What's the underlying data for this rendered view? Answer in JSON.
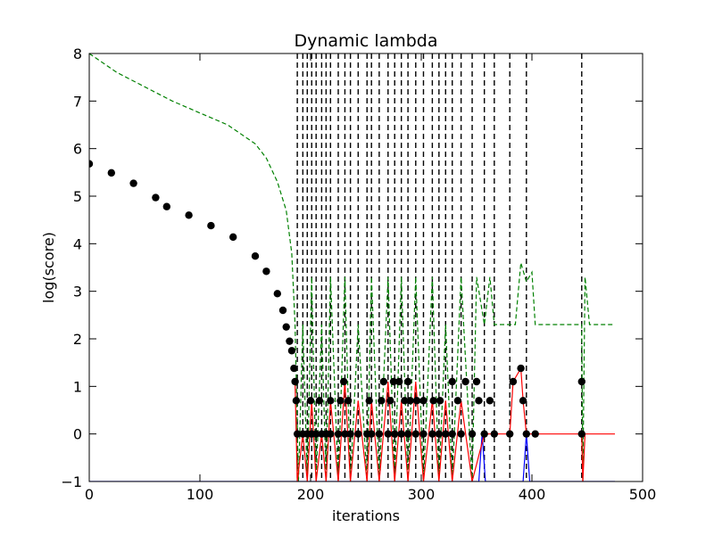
{
  "chart_data": {
    "type": "line",
    "title": "Dynamic lambda",
    "xlabel": "iterations",
    "ylabel": "log(score)",
    "xlim": [
      0,
      500
    ],
    "ylim": [
      -1,
      8
    ],
    "xticks": [
      0,
      100,
      200,
      300,
      400,
      500
    ],
    "yticks": [
      -1,
      0,
      1,
      2,
      3,
      4,
      5,
      6,
      7,
      8
    ],
    "xtick_labels": [
      "0",
      "100",
      "200",
      "300",
      "400",
      "500"
    ],
    "ytick_labels": [
      "−1",
      "0",
      "1",
      "2",
      "3",
      "4",
      "5",
      "6",
      "7",
      "8"
    ],
    "grid": false,
    "legend": "none",
    "colors": {
      "score_markers": "#000000",
      "red_line": "#ff0000",
      "blue_line": "#0000ff",
      "green_dashed": "#008000",
      "vertical_dashed": "#000000"
    },
    "series": [
      {
        "style": "black circles (log score)",
        "points": [
          [
            0,
            5.68
          ],
          [
            20,
            5.49
          ],
          [
            40,
            5.27
          ],
          [
            60,
            4.97
          ],
          [
            70,
            4.78
          ],
          [
            90,
            4.6
          ],
          [
            110,
            4.38
          ],
          [
            130,
            4.14
          ],
          [
            150,
            3.74
          ],
          [
            160,
            3.42
          ],
          [
            170,
            2.95
          ],
          [
            175,
            2.6
          ],
          [
            178,
            2.25
          ],
          [
            181,
            1.95
          ],
          [
            183,
            1.75
          ],
          [
            185,
            1.38
          ],
          [
            186,
            1.1
          ],
          [
            187,
            0.7
          ],
          [
            188,
            0.0
          ],
          [
            193,
            0.0
          ],
          [
            197,
            0.0
          ],
          [
            201,
            0.0
          ],
          [
            205,
            0.0
          ],
          [
            210,
            0.0
          ],
          [
            214,
            0.0
          ],
          [
            218,
            0.0
          ],
          [
            225,
            0.0
          ],
          [
            231,
            0.0
          ],
          [
            236,
            0.0
          ],
          [
            243,
            0.0
          ],
          [
            251,
            0.0
          ],
          [
            255,
            0.0
          ],
          [
            262,
            0.0
          ],
          [
            270,
            0.0
          ],
          [
            276,
            0.0
          ],
          [
            282,
            0.0
          ],
          [
            288,
            0.0
          ],
          [
            295,
            0.0
          ],
          [
            302,
            0.0
          ],
          [
            310,
            0.0
          ],
          [
            316,
            0.0
          ],
          [
            322,
            0.0
          ],
          [
            328,
            0.0
          ],
          [
            336,
            0.0
          ],
          [
            346,
            0.0
          ],
          [
            357,
            0.0
          ],
          [
            366,
            0.0
          ],
          [
            380,
            0.0
          ],
          [
            395,
            0.0
          ],
          [
            403,
            0.0
          ],
          [
            445,
            0.0
          ],
          [
            200,
            0.7
          ],
          [
            208,
            0.7
          ],
          [
            218,
            0.7
          ],
          [
            227,
            0.7
          ],
          [
            234,
            0.7
          ],
          [
            253,
            0.7
          ],
          [
            264,
            0.7
          ],
          [
            272,
            0.7
          ],
          [
            285,
            0.7
          ],
          [
            290,
            0.7
          ],
          [
            296,
            0.7
          ],
          [
            302,
            0.7
          ],
          [
            311,
            0.7
          ],
          [
            317,
            0.7
          ],
          [
            333,
            0.7
          ],
          [
            352,
            0.7
          ],
          [
            362,
            0.7
          ],
          [
            392,
            0.7
          ],
          [
            230,
            1.1
          ],
          [
            266,
            1.1
          ],
          [
            275,
            1.1
          ],
          [
            280,
            1.1
          ],
          [
            288,
            1.1
          ],
          [
            328,
            1.1
          ],
          [
            340,
            1.1
          ],
          [
            350,
            1.1
          ],
          [
            383,
            1.1
          ],
          [
            445,
            1.1
          ],
          [
            390,
            1.38
          ]
        ]
      },
      {
        "style": "red line (bottom range)",
        "points": [
          [
            186,
            1.1
          ],
          [
            188,
            -1.0
          ],
          [
            193,
            0.0
          ],
          [
            197,
            -1.0
          ],
          [
            201,
            0.7
          ],
          [
            205,
            -1.0
          ],
          [
            210,
            0.0
          ],
          [
            214,
            -1.0
          ],
          [
            218,
            0.7
          ],
          [
            225,
            -1.0
          ],
          [
            231,
            1.1
          ],
          [
            236,
            -1.0
          ],
          [
            243,
            0.7
          ],
          [
            251,
            -1.0
          ],
          [
            255,
            0.7
          ],
          [
            262,
            -1.0
          ],
          [
            270,
            1.1
          ],
          [
            276,
            -1.0
          ],
          [
            282,
            0.7
          ],
          [
            288,
            -1.0
          ],
          [
            295,
            1.1
          ],
          [
            302,
            -1.0
          ],
          [
            310,
            0.7
          ],
          [
            316,
            -1.0
          ],
          [
            322,
            0.7
          ],
          [
            328,
            -1.0
          ],
          [
            336,
            0.7
          ],
          [
            346,
            -1.0
          ],
          [
            357,
            0.0
          ],
          [
            366,
            0.0
          ],
          [
            380,
            0.0
          ],
          [
            383,
            1.1
          ],
          [
            390,
            1.38
          ],
          [
            392,
            0.7
          ],
          [
            395,
            0.0
          ],
          [
            403,
            0.0
          ],
          [
            445,
            0.0
          ],
          [
            446,
            -1.0
          ],
          [
            448,
            0.0
          ],
          [
            475,
            0.0
          ]
        ]
      },
      {
        "style": "blue line",
        "points": [
          [
            0,
            -1.0
          ],
          [
            352,
            -1.0
          ],
          [
            355,
            0.0
          ],
          [
            358,
            -1.0
          ],
          [
            392,
            -1.0
          ],
          [
            395,
            0.0
          ],
          [
            398,
            -1.0
          ],
          [
            475,
            -1.0
          ]
        ]
      },
      {
        "style": "green dashed line",
        "points": [
          [
            0,
            8.0
          ],
          [
            25,
            7.6
          ],
          [
            50,
            7.3
          ],
          [
            75,
            7.0
          ],
          [
            100,
            6.75
          ],
          [
            125,
            6.5
          ],
          [
            150,
            6.1
          ],
          [
            160,
            5.8
          ],
          [
            170,
            5.3
          ],
          [
            178,
            4.7
          ],
          [
            183,
            3.8
          ],
          [
            186,
            2.3
          ],
          [
            189,
            -1.0
          ],
          [
            193,
            2.3
          ],
          [
            197,
            -1.0
          ],
          [
            201,
            3.3
          ],
          [
            205,
            -1.0
          ],
          [
            210,
            2.3
          ],
          [
            214,
            -1.0
          ],
          [
            218,
            3.3
          ],
          [
            225,
            -1.0
          ],
          [
            231,
            3.3
          ],
          [
            236,
            -1.0
          ],
          [
            243,
            2.3
          ],
          [
            251,
            -1.0
          ],
          [
            255,
            3.3
          ],
          [
            262,
            -1.0
          ],
          [
            270,
            3.3
          ],
          [
            276,
            -1.0
          ],
          [
            282,
            3.3
          ],
          [
            288,
            -1.0
          ],
          [
            295,
            3.3
          ],
          [
            302,
            -1.0
          ],
          [
            310,
            3.3
          ],
          [
            316,
            -1.0
          ],
          [
            322,
            2.3
          ],
          [
            328,
            -1.0
          ],
          [
            336,
            3.3
          ],
          [
            346,
            -1.0
          ],
          [
            350,
            3.3
          ],
          [
            357,
            2.3
          ],
          [
            362,
            3.3
          ],
          [
            366,
            2.3
          ],
          [
            385,
            2.3
          ],
          [
            390,
            3.6
          ],
          [
            395,
            3.2
          ],
          [
            400,
            3.4
          ],
          [
            403,
            2.3
          ],
          [
            445,
            2.3
          ],
          [
            446,
            -1.0
          ],
          [
            448,
            3.3
          ],
          [
            452,
            2.3
          ],
          [
            475,
            2.3
          ]
        ]
      },
      {
        "style": "black vertical dashed lines",
        "x": [
          188,
          193,
          197,
          201,
          205,
          210,
          214,
          218,
          225,
          231,
          236,
          243,
          251,
          255,
          262,
          270,
          276,
          282,
          288,
          295,
          302,
          310,
          316,
          322,
          328,
          336,
          346,
          357,
          366,
          380,
          395,
          445
        ]
      }
    ]
  }
}
